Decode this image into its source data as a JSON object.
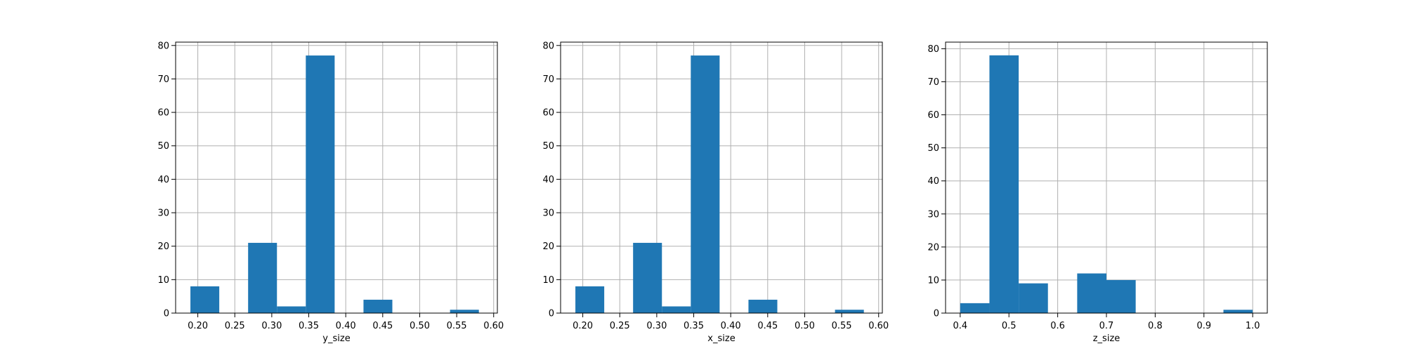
{
  "chart_data": [
    {
      "type": "bar",
      "subtype": "histogram",
      "xlabel": "y_size",
      "ylabel": "",
      "xlim": [
        0.17,
        0.605
      ],
      "ylim": [
        0,
        81
      ],
      "xticks": [
        0.2,
        0.25,
        0.3,
        0.35,
        0.4,
        0.45,
        0.5,
        0.55,
        0.6
      ],
      "yticks": [
        0,
        10,
        20,
        30,
        40,
        50,
        60,
        70,
        80
      ],
      "grid": true,
      "bin_edges": [
        0.19,
        0.229,
        0.268,
        0.307,
        0.346,
        0.385,
        0.424,
        0.463,
        0.502,
        0.541,
        0.58
      ],
      "values": [
        8,
        0,
        21,
        2,
        77,
        0,
        4,
        0,
        0,
        1
      ],
      "color": "#1f77b4"
    },
    {
      "type": "bar",
      "subtype": "histogram",
      "xlabel": "x_size",
      "ylabel": "",
      "xlim": [
        0.17,
        0.605
      ],
      "ylim": [
        0,
        81
      ],
      "xticks": [
        0.2,
        0.25,
        0.3,
        0.35,
        0.4,
        0.45,
        0.5,
        0.55,
        0.6
      ],
      "yticks": [
        0,
        10,
        20,
        30,
        40,
        50,
        60,
        70,
        80
      ],
      "grid": true,
      "bin_edges": [
        0.19,
        0.229,
        0.268,
        0.307,
        0.346,
        0.385,
        0.424,
        0.463,
        0.502,
        0.541,
        0.58
      ],
      "values": [
        8,
        0,
        21,
        2,
        77,
        0,
        4,
        0,
        0,
        1
      ],
      "color": "#1f77b4"
    },
    {
      "type": "bar",
      "subtype": "histogram",
      "xlabel": "z_size",
      "ylabel": "",
      "xlim": [
        0.37,
        1.03
      ],
      "ylim": [
        0,
        82
      ],
      "xticks": [
        0.4,
        0.5,
        0.6,
        0.7,
        0.8,
        0.9,
        1.0
      ],
      "yticks": [
        0,
        10,
        20,
        30,
        40,
        50,
        60,
        70,
        80
      ],
      "grid": true,
      "bin_edges": [
        0.4,
        0.46,
        0.52,
        0.58,
        0.64,
        0.7,
        0.76,
        0.82,
        0.88,
        0.94,
        1.0
      ],
      "values": [
        3,
        78,
        9,
        0,
        12,
        10,
        0,
        0,
        0,
        1
      ],
      "color": "#1f77b4"
    }
  ]
}
